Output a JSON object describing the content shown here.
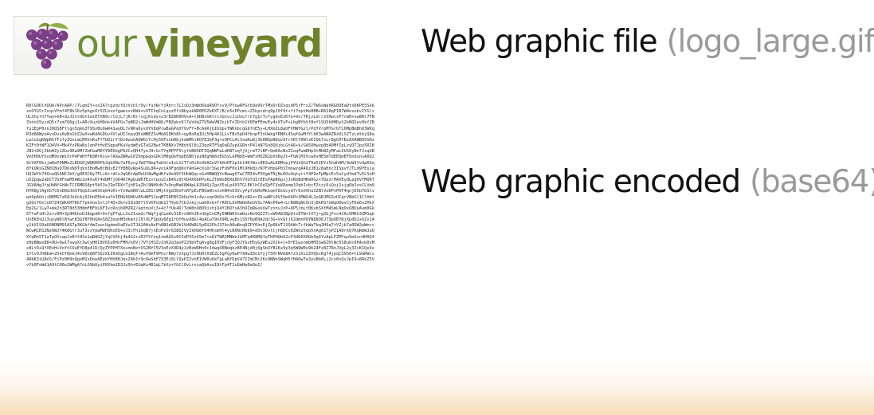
{
  "logo": {
    "word1": "our",
    "word2": "vineyard",
    "icon": "grape-cluster-icon",
    "colors": {
      "word1": "#6f8f34",
      "word2": "#71822a",
      "grapes": "#7b3f86"
    }
  },
  "captions": {
    "file_main": "Web graphic file",
    "file_paren": "(logo_large.gif)",
    "encoded_main": "Web graphic encoded",
    "encoded_paren": "(base64)"
  },
  "encoded_text": "R0lGODlhOQA/APcAAP//7LgmIY+xxIA7cgzdsfQcVzblr9y/funN/fjRhrc7LJsDz3mWdXkaR9OYsv9/PYewRFGtb9aV6rTMxDrDZsqsdP5rFrxZ/TWGsWahRG0UEaDtxDKPE5SkkzeOYG5rZsqsVYmf4F8b16z5phgxOr5ZLbvnfgwmsxvKWkxvOTIhqCnLqzzPfiNbyukND0EDZkKXT/B/e5ePPvmi+Z5hpcdcq9pJ0f9t+fi7nptHe8BB+R628qPIB7W4esekvIYGlxULShyrh7Ywy+bB+dzJIntOGtSdiETXN9crlbjL7jKrBr/sqjKsdysx3rBZAR0HVsA+tQDBsGKtrcxUzvcJiUoLfrCYgIcTsfygbsEzKfe+9n/7RjyLdr/z5HwcsP7cmH+sw8Rt7FNZnnoS5yjdQ5r7xm7Q6gj1+ARcXuzbHQd+kV4PGs7qBR2jJmWdHVmR6/FNZpbcKl7pVdqZ7U5WaVNZojbTeIDtb1VOFmFEmvEy4sXTyF+LbgBYbSf8ef1SUXh0HDyS2kBQSyv0kfZBfu1EpP0nnJ0QS8Ftlgn5qkG3T9SnBoQwR41wyDL7vNPa6ysQYh8qPcwBaGPqOYVvFY+BcAkRjbIbUpvTWKnbcqGbfnE5y+LHXmIL8aUFVHWYGzl/PdTVrpMTGrbTL6MpBmBhO3WXqR3d88WyoAvvDvu0yBxGhZ2wXvwKdAGDGvXVlaUIJnpyQKsWNEZSvMdAIDKh8t+qyBoRqIUj5Hp4A1LLvTBx5pD4YknpFJnUwkgYRN0i4SqfGwMfYlkK3wANAZRzULSZTzLdtbjQ9aLwJu1gKWpRhfFzfyZGnLmLMXVoKuFfTbD2rYlDv6wuhAQWGtYcHy56FxnbRbjkdmMhiRQYE3bP3g+s0PCLAt3xwKu8j3k0N5pNQqv9frhRlY0NlsKIQk7xLrBgCRfBzAXAWBO5GHzKZFt0tWF1Q4VV+Mk4YzPRaNxJqnPtHvESqpaFKuVydmEyGTaS2BwtTKBNXv7H8dtQl8jZ3qzRTF5gDaDZypXGRhrP4lkN7Sn8QUjbLGtA6+k/GA5OHwvp8bA0MfIpLzyDTJpy5RIKJB2+DGjZkbHZy1Zbz9Ea9MfZmPwaMDYY8E6bgPA2CzQH47yeJ9rGcTYqHPFF5tyfkBKhRT3QqNWTwLdH8TvqYjUjrmT7vBFrQm6AsNsZ1oqFwmRHp3tMbBZyMFaLXUSOyNn7JsqUBVm5HOUfhxdM9vnWiXrP4FmHfFN3MrKsv+7AXwZWRw1PZhmpGqnGOklM0gQkFmpE6BDjaiNEgHA6oEG5yLkPNbE+WmFxHQZR2pXhBy2t+FQAlMJVcw6vHE5mTdEEQmEFOnOxnsA0U29iVXF0ksjm6eP0NMe2LEDG0jWQKR0PbJqkXNu7aF6yuyJW2T0mpTwGhtoIvLGJT7vRi0s9UAZuVYkHnHT2pJk14KfWzc8R3uALK8MnpjPYUzQh2THa5IDYz5hdh9M/9eW3YvUpKUq8YkQRsGZN01BuQ7D6xN9TqVn3HoMw8tBQsE2fYBBQyRp4SuUL8R+yoiA9FgqQKsYAhG4cXsOr3GpzFd9F0o1Ml9HkBz/N7FxHpGPbSTmnwzqA4QzJB1v8aHnc3ISpvYJTLm9YEs1aUQ1Wfk74OcwQG6NCJbX/g0EXC8y7FLi8rrdCoJqGRtApMuUJ8wMgdKfu9eA9f3UkWQqcsGzHBWQQVcBwwg67wC7MI4vFOVgmTNjNs0Ov9qtyr+Y4P9zFpMpcEz5uCydYmdTv5LSoHu5Zpqw2aDCT7G0FewM5AWz2o4XsKf4dDMfjQ64RfAgbuW6TEzvtpuyCsB4Xz9tVQ4X6bPPukLZTmWxB0Xq8hV7XU7dIrEEsPApR6pzjJnKbBdHKm0Gz+7DpzrHAVEydLpg6VfMQRTJGVAHgJfqUbNfGhNcTCCRMRS8pt5k53xJIm7DXtTjhE1aZbl9NHXdh7xOnyMaK8W4pL6Z0AQjZgzX5oLp4X3TGlEKlhC6dZpFCVqVDemqlPqhIxbcF2tzj6iQxj1sjgOb2zsCLVm9HYR8glAgVbTC6nDDdJmSTQqG3cm6ShqG4iKt+Yz9wGB6lwLZ81l9MytVgd3QoFxRTpExFBQaNtxnnhN4xUIVcyPp7zGRnMk1qmY8sGcyd7r6xOVhu3ZNlVoDPxPKF4qnjD5bYbSlvwh9pAOnjiBEMG7zEAJkUcAj6IbhPEb4+aYnIEHG0QHUvB5dNFSJeqMTIKEB5ZdUuYm1c4y+xqo9kDsf5cUrAMjvN2zcIK+wNPi9VfUmX4Pn1MWX4L3oGBJMG3zUCqrVNbGl1ClHdtg2QsYOxlnD7Z4CWk6HTKkT7pkXoe1vlJf4Q+Zk+eI8i0D7lVvKPoQm1IT9yb7CbJxkyjuaU0xG+TrRDhLQnMmDmKebVSL7AWsP9w4rLrB8BgNCOn3j8kRSfeWqd0wsCyFDa6n2HkXEp2G/lLw7+mk2n3RT8d53H8mFBFbLKFIvcRojbOM2R2/aqtnuVj3+4c7fUk4D/TeW8nU8O9jshjU4YJKDYsA3hOZqRGekVwTzxnvJzP+DP5jbLt0KvbSXtM4SmLNqOxQ8UyAvm0Gk6TfaFsHt2z+z0M+3p9HGhvDJ8qpd0+0sfqP7qLi2oZ1xm2c7WqYjqCLm0v31E+x9Kh2K+UUpCnCMy5NRW6VxmDuvNz9QZZ7cxWOA82NpQtsETW+lX7j+gZbjFvs4JAx5MKh3ZM1qbUxEK0sU13uyyW6lBtwtK3GfBY0hUAnS8Z3oqnM3dkmtjI0l9LFSpdy6Eg1rQfHuvd8Gl4pACw79nX9RLvwEx1S5Y6pB9A2dc3G+VxGtj62dmnPQYN88O6J73pOEYRjXpdD2+QZv14y1kX1S9a66HDNM91AS7p3KGbf4mZxwcUgdmdVaEVu3TJA2AHsAeFh8BSdSB3k1Vd6W8L5pEU2PkJ37bcA0wBnq8ZPY6hnEjZp6KdT1SQ4W+TcfkWaTbq3H9q7tVZjb7a0DW2pWm+sWCwRCKS2Nz6WJY4K8Gfr3uT3sxYpwMdH3KoEQ+vJ3cFh1XqB7jnEoPzOr6Z8QJVyIkHd8fO4HhsmHt4yiB6NcRbb9+dOv3OvtCjh6DCs0ZWXz5dp5nAg61TyPZ1A0rkQ7KqRmWJaQXYqRh5T2aTpOVrwpJzBftH3z1qB8GZjYqCV6hj4b4G2rzR3YYfeq1tmAQSs0C5dPX5zX5m7+e8Y7WRIMNWnJkMTq4K8MQfwTHPHQbU2cP3dD0X0Gb9q6YvApLFZMYqu5mSxn4H0Q4zHpBNwsB8+9U+Qw1TswuXt3wCyH0I8V6Ie0HcFMH/k6Vj7VYjH3Zv2nK2dJaoPZJ9bVFgAvg8gI0VFjdyF3QJYGsH5yGzWEu2XJk+l+0fE1wsnmbHM3Sw6ZHlWc5S8uUc6H4xb0xMx8LtD+QfXEeH+VoYcCOuEfD8p4lD/QyZYPPH7Xe+mnNxtOS2NYC5V3oEzX9R4yJzBzW9Hn0cIdwqO0Ndqkz8E4Njd0j6gSbXYB1Kx9y3q5WQW0u9bZ4Fz8Z7RnJVpL2y3ZcK1QeXe1fCv9JhNbm+2hkOfQmkJ4sVDnQ8FSQzX1I0m5gLG1BqT+AvV9mF9PkcrBWy7zhpg7JxHbRtXdE2L5gPqy0wP7kRwIDo1YyjY5HrNVm8AfzS1Xs2ZVQGcKg74jpqC3Vb6+tL9aRWcs4RbK3iU8e5/FjPz0H9nQgxM2sDoeAEykYHhB0JqvZ4b1t9c6wSbF7X3Ei8jlQyPZ2vnE1VW0u6kTgLaBfDpV47IZmCMc2Ks9NNnSWqH5fH4OwTa3yvBb6Lj2cx0xQvJpI9+8RkZ5VvYb0FeWd1A9tCH6e2WMgA7nLO9bUyiP8Xhm2D3Jz9h+EGqKs4B1qL7kXz+YGCl0vLrvsaQbAxoI8tFp4T1oDmHw0aQeI/"
}
